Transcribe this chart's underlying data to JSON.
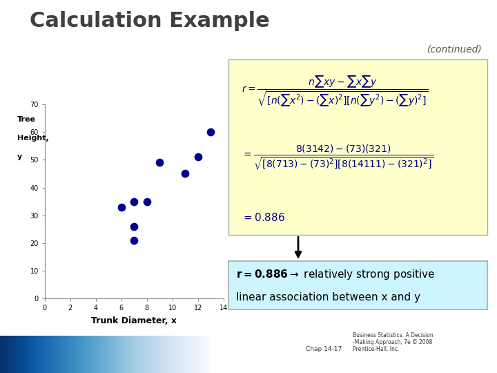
{
  "title": "Calculation Example",
  "subtitle": "(continued)",
  "scatter_x": [
    6,
    7,
    7,
    7,
    8,
    9,
    11,
    12,
    13
  ],
  "scatter_y": [
    33,
    21,
    26,
    35,
    35,
    49,
    45,
    51,
    60
  ],
  "dot_color": "#00008B",
  "xlabel": "Trunk Diameter, x",
  "ylabel_line1": "Tree",
  "ylabel_line2": "Height,",
  "ylabel_line3": "y",
  "xlim": [
    0,
    14
  ],
  "ylim": [
    0,
    70
  ],
  "xticks": [
    0,
    2,
    4,
    6,
    8,
    10,
    12,
    14
  ],
  "yticks": [
    0,
    10,
    20,
    30,
    40,
    50,
    60,
    70
  ],
  "formula_box_color": "#FFFFCC",
  "result_box_color": "#CCF5FF",
  "bg_color": "#FFFFFF",
  "title_color": "#404040",
  "subtitle_color": "#555555",
  "formula_text_color": "#000080",
  "result_text_color": "#000000",
  "scatter_dot_size": 55,
  "title_fontsize": 22,
  "subtitle_fontsize": 10,
  "formula_fontsize": 10,
  "result_fontsize": 11
}
